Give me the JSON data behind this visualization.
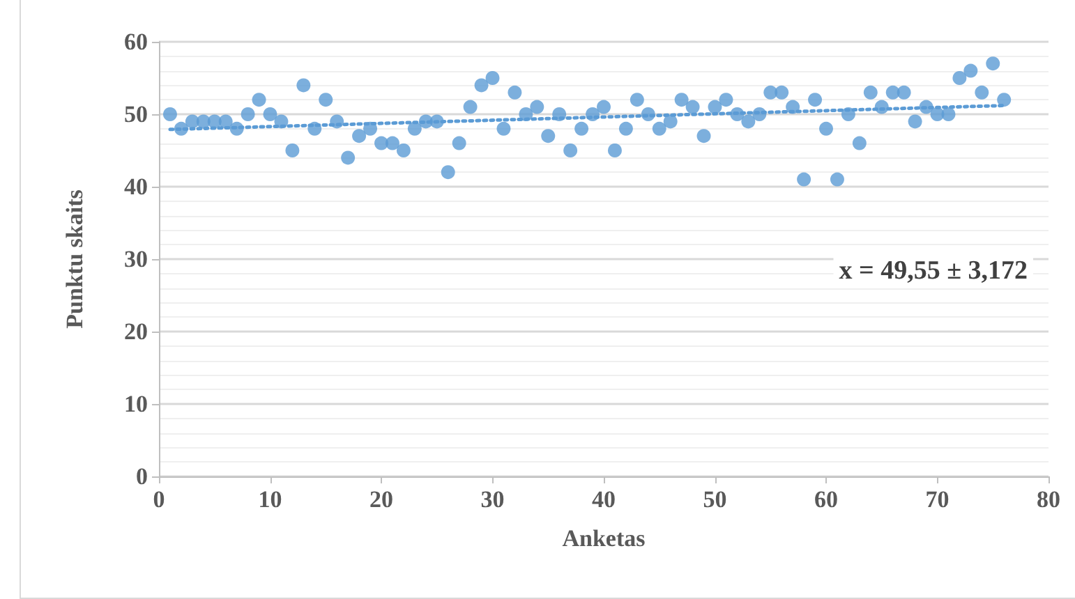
{
  "chart_data": {
    "type": "scatter",
    "xlabel": "Anketas",
    "ylabel": "Punktu skaits",
    "annotations": [
      "x = 49,55 ± 3,172"
    ],
    "xlim": [
      0,
      80
    ],
    "xticks": [
      0,
      10,
      20,
      30,
      40,
      50,
      60,
      70,
      80
    ],
    "ylim": [
      0,
      60
    ],
    "yticks": [
      0,
      10,
      20,
      30,
      40,
      50,
      60
    ],
    "grid": "y",
    "marker": "circle",
    "series": [
      {
        "color": "#5b9bd5",
        "x": [
          1,
          2,
          3,
          4,
          5,
          6,
          7,
          8,
          9,
          10,
          11,
          12,
          13,
          14,
          15,
          16,
          17,
          18,
          19,
          20,
          21,
          22,
          23,
          24,
          25,
          26,
          27,
          28,
          29,
          30,
          31,
          32,
          33,
          34,
          35,
          36,
          37,
          38,
          39,
          40,
          41,
          42,
          43,
          44,
          45,
          46,
          47,
          48,
          49,
          50,
          51,
          52,
          53,
          54,
          55,
          56,
          57,
          58,
          59,
          60,
          61,
          62,
          63,
          64,
          65,
          66,
          67,
          68,
          69,
          70,
          71,
          72,
          73,
          74,
          75,
          76
        ],
        "values": [
          50,
          48,
          49,
          49,
          49,
          49,
          48,
          50,
          52,
          50,
          49,
          45,
          54,
          48,
          52,
          49,
          44,
          47,
          48,
          46,
          46,
          45,
          48,
          49,
          49,
          42,
          46,
          51,
          54,
          55,
          48,
          53,
          50,
          51,
          47,
          50,
          45,
          48,
          50,
          51,
          45,
          48,
          52,
          50,
          48,
          49,
          52,
          51,
          47,
          51,
          52,
          50,
          49,
          50,
          53,
          53,
          51,
          41,
          52,
          48,
          41,
          50,
          46,
          53,
          51,
          53,
          53,
          49,
          51,
          50,
          50,
          55,
          56,
          53,
          57,
          52
        ]
      },
      {
        "type": "line",
        "color": "#5b9bd5",
        "line_style": "dotted",
        "marker": "none",
        "x": [
          1,
          76
        ],
        "values": [
          47.9,
          51.2
        ]
      }
    ]
  }
}
